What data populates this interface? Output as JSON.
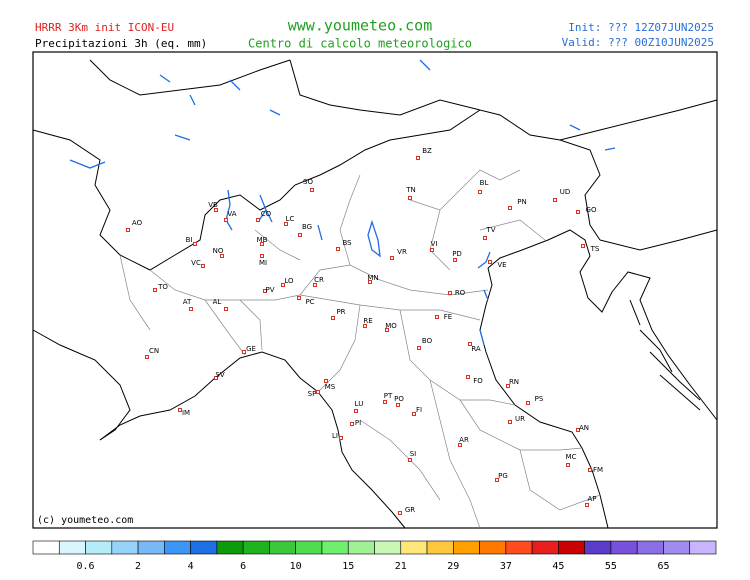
{
  "header": {
    "model": "HRRR 3Km init ICON-EU",
    "product": "Precipitazioni 3h (eq. mm)",
    "site": "www.youmeteo.com",
    "subtitle": "Centro di calcolo meteorologico",
    "init": "Init: ??? 12Z07JUN2025",
    "valid": "Valid: ??? 00Z10JUN2025"
  },
  "copyright": "(c) youmeteo.com",
  "cities": [
    "BZ",
    "SO",
    "TN",
    "BL",
    "UD",
    "PN",
    "GO",
    "TS",
    "AO",
    "VB",
    "VA",
    "CO",
    "LC",
    "BG",
    "BI",
    "MB",
    "BS",
    "TV",
    "VR",
    "VI",
    "PD",
    "VE",
    "NO",
    "MI",
    "VC",
    "CR",
    "LO",
    "MN",
    "RO",
    "TO",
    "AT",
    "PV",
    "PC",
    "AL",
    "FE",
    "PR",
    "RE",
    "MO",
    "BO",
    "RA",
    "GE",
    "CN",
    "SV",
    "FO",
    "RN",
    "SP",
    "MS",
    "PS",
    "LU",
    "PT",
    "PO",
    "FI",
    "IM",
    "PI",
    "UR",
    "AN",
    "LI",
    "AR",
    "SI",
    "MC",
    "FM",
    "PG",
    "AP",
    "GR"
  ],
  "colorbar": {
    "colors": [
      "#ffffff",
      "#d8f6fc",
      "#b4ecfa",
      "#96d2fa",
      "#78b9f5",
      "#3c96f5",
      "#1e6ee6",
      "#0a9a0a",
      "#1eb41e",
      "#3cc83c",
      "#50dc50",
      "#6ef06e",
      "#a0f096",
      "#c8f8b4",
      "#ffe678",
      "#ffc83c",
      "#ffa000",
      "#ff7800",
      "#ff4b1e",
      "#e61e1e",
      "#c80000",
      "#5a3cc8",
      "#7850dc",
      "#8c6ee6",
      "#a08cf0",
      "#c8b4ff"
    ],
    "labels": [
      0.6,
      2,
      4,
      6,
      10,
      15,
      21,
      29,
      37,
      45,
      55,
      65
    ]
  }
}
